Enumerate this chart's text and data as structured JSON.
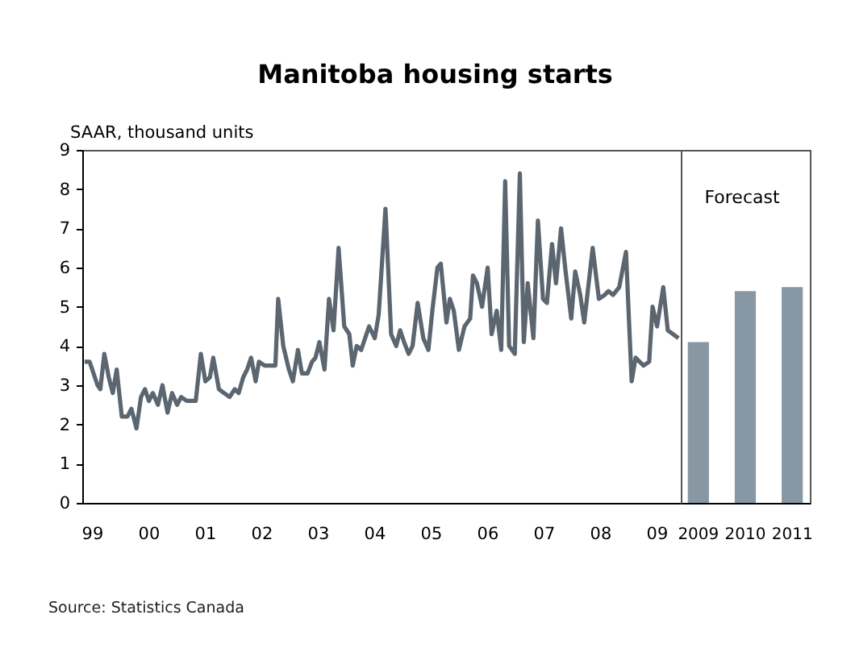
{
  "chart_data": [
    {
      "type": "line",
      "title": "Manitoba housing starts",
      "ylabel": "SAAR, thousand units",
      "color": "#5b6670",
      "x": [
        1998.87,
        1998.96,
        1999.1,
        1999.15,
        1999.22,
        1999.3,
        1999.37,
        1999.44,
        1999.53,
        1999.63,
        1999.7,
        1999.79,
        1999.87,
        1999.94,
        2000.01,
        2000.08,
        2000.17,
        2000.25,
        2000.34,
        2000.42,
        2000.51,
        2000.58,
        2000.68,
        2000.84,
        2000.93,
        2001.01,
        2001.09,
        2001.15,
        2001.25,
        2001.34,
        2001.44,
        2001.53,
        2001.6,
        2001.68,
        2001.75,
        2001.82,
        2001.9,
        2001.96,
        2002.06,
        2002.25,
        2002.3,
        2002.39,
        2002.49,
        2002.56,
        2002.65,
        2002.72,
        2002.82,
        2002.9,
        2002.96,
        2003.03,
        2003.12,
        2003.2,
        2003.28,
        2003.37,
        2003.47,
        2003.56,
        2003.62,
        2003.69,
        2003.77,
        2003.91,
        2004.01,
        2004.08,
        2004.2,
        2004.3,
        2004.39,
        2004.46,
        2004.53,
        2004.61,
        2004.68,
        2004.77,
        2004.87,
        2004.96,
        2005.03,
        2005.12,
        2005.18,
        2005.28,
        2005.34,
        2005.41,
        2005.5,
        2005.6,
        2005.7,
        2005.75,
        2005.82,
        2005.91,
        2006.01,
        2006.08,
        2006.17,
        2006.25,
        2006.32,
        2006.39,
        2006.49,
        2006.58,
        2006.65,
        2006.72,
        2006.82,
        2006.9,
        2006.99,
        2007.06,
        2007.15,
        2007.22,
        2007.31,
        2007.39,
        2007.49,
        2007.56,
        2007.65,
        2007.72,
        2007.87,
        2007.98,
        2008.08,
        2008.15,
        2008.23,
        2008.34,
        2008.46,
        2008.56,
        2008.63,
        2008.77,
        2008.87,
        2008.93,
        2009.01,
        2009.12,
        2009.2,
        2009.39
      ],
      "values": [
        3.6,
        3.6,
        3.0,
        2.9,
        3.8,
        3.2,
        2.8,
        3.4,
        2.2,
        2.2,
        2.4,
        1.9,
        2.7,
        2.9,
        2.6,
        2.8,
        2.5,
        3.0,
        2.3,
        2.8,
        2.5,
        2.7,
        2.6,
        2.6,
        3.8,
        3.1,
        3.2,
        3.7,
        2.9,
        2.8,
        2.7,
        2.9,
        2.8,
        3.2,
        3.4,
        3.7,
        3.1,
        3.6,
        3.5,
        3.5,
        5.2,
        4.0,
        3.4,
        3.1,
        3.9,
        3.3,
        3.3,
        3.6,
        3.7,
        4.1,
        3.4,
        5.2,
        4.4,
        6.5,
        4.5,
        4.3,
        3.5,
        4.0,
        3.9,
        4.5,
        4.2,
        4.8,
        7.5,
        4.3,
        4.0,
        4.4,
        4.1,
        3.8,
        4.0,
        5.1,
        4.2,
        3.9,
        4.9,
        6.0,
        6.1,
        4.6,
        5.2,
        4.9,
        3.9,
        4.5,
        4.7,
        5.8,
        5.6,
        5.0,
        6.0,
        4.3,
        4.9,
        3.9,
        8.2,
        4.0,
        3.8,
        8.4,
        4.1,
        5.6,
        4.2,
        7.2,
        5.2,
        5.1,
        6.6,
        5.6,
        7.0,
        5.9,
        4.7,
        5.9,
        5.3,
        4.6,
        6.5,
        5.2,
        5.3,
        5.4,
        5.3,
        5.5,
        6.4,
        3.1,
        3.7,
        3.5,
        3.6,
        5.0,
        4.5,
        5.5,
        4.4,
        4.2
      ],
      "xlim": [
        1998.83,
        2009.43
      ],
      "xticks": [
        {
          "value": 1999,
          "label": "99"
        },
        {
          "value": 2000,
          "label": "00"
        },
        {
          "value": 2001,
          "label": "01"
        },
        {
          "value": 2002,
          "label": "02"
        },
        {
          "value": 2003,
          "label": "03"
        },
        {
          "value": 2004,
          "label": "04"
        },
        {
          "value": 2005,
          "label": "05"
        },
        {
          "value": 2006,
          "label": "06"
        },
        {
          "value": 2007,
          "label": "07"
        },
        {
          "value": 2008,
          "label": "08"
        },
        {
          "value": 2009,
          "label": "09"
        }
      ],
      "ylim": [
        0,
        9
      ],
      "yticks": [
        0,
        1,
        2,
        3,
        4,
        5,
        6,
        7,
        8,
        9
      ],
      "annotations": [
        "Source: Statistics Canada"
      ]
    },
    {
      "type": "bar",
      "categories": [
        "2009",
        "2010",
        "2011"
      ],
      "values": [
        4.1,
        5.4,
        5.5
      ],
      "color": "#8798a4",
      "ylim": [
        0,
        9
      ],
      "yticks": [
        0,
        1,
        2,
        3,
        4,
        5,
        6,
        7,
        8,
        9
      ],
      "tick_labels": "x",
      "annotations": [
        "Forecast"
      ]
    }
  ]
}
